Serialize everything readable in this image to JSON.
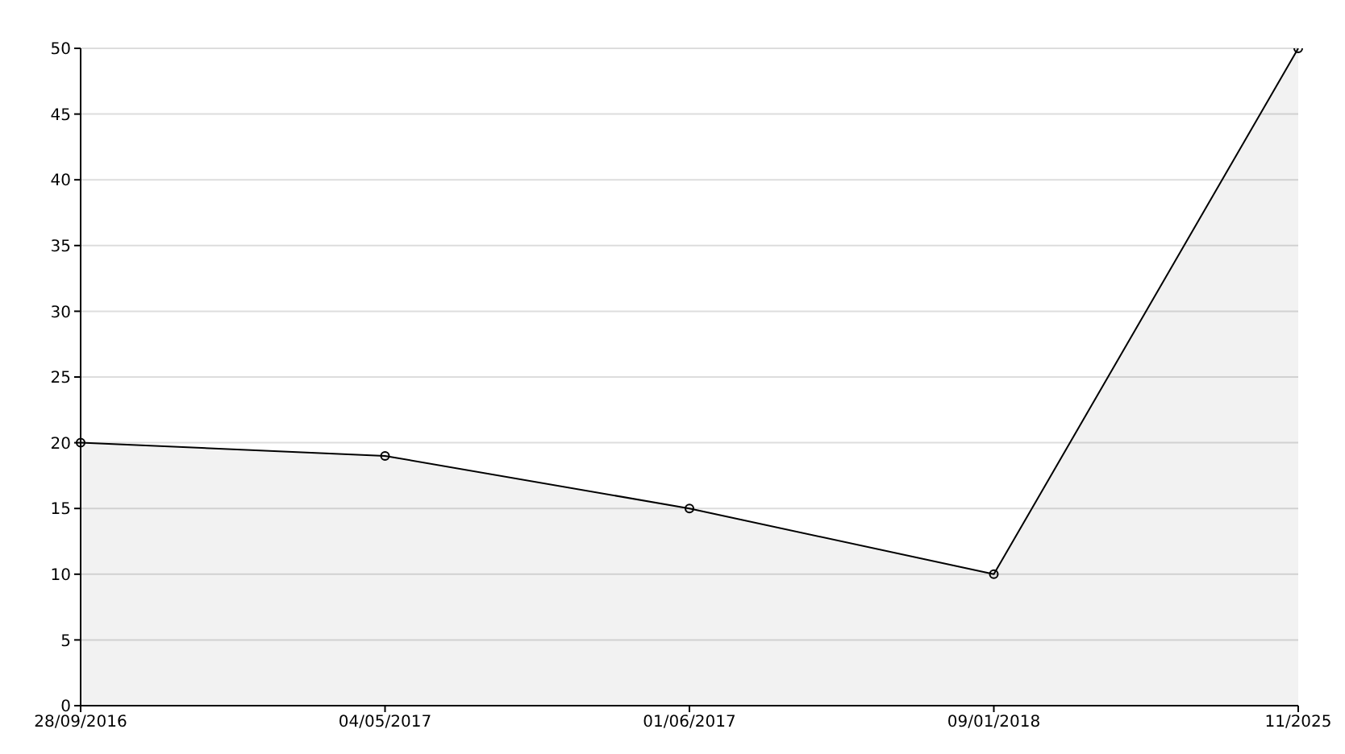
{
  "chart_data": {
    "type": "area",
    "categories": [
      "28/09/2016",
      "04/05/2017",
      "01/06/2017",
      "09/01/2018",
      "11/2025"
    ],
    "series": [
      {
        "color": "#000000",
        "values": [
          20,
          19,
          15,
          10,
          50
        ]
      }
    ],
    "ylim": [
      0,
      50
    ],
    "yticks": [
      0,
      5,
      10,
      15,
      20,
      25,
      30,
      35,
      40,
      45,
      50
    ],
    "grid": "y",
    "marker": "circle",
    "line_style": "solid"
  }
}
